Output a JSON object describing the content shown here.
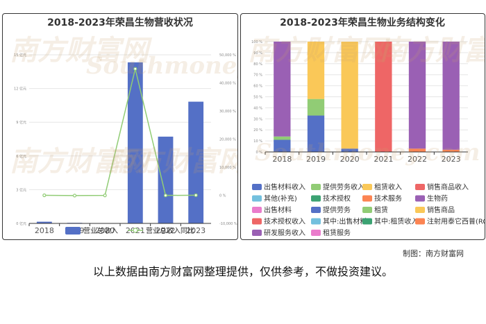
{
  "charts": {
    "left": {
      "title": "2018-2023年荣昌生物营收状况",
      "left_ticks": [
        "0 亿元",
        "3 亿元",
        "6 亿元",
        "9 亿元",
        "12 亿元",
        "15 亿元"
      ],
      "right_ticks": [
        "-10,000 %",
        "0 %",
        "10,000 %",
        "20,000 %",
        "30,000 %",
        "40,000 %",
        "50,000 %"
      ]
    },
    "right": {
      "title": "2018-2023年荣昌生物业务结构变化",
      "y_ticks": [
        "0 %",
        "10 %",
        "20 %",
        "30 %",
        "40 %",
        "50 %",
        "60 %",
        "70 %",
        "80 %",
        "90 %",
        "100 %"
      ]
    }
  },
  "chart_data": [
    {
      "type": "bar",
      "title": "2018-2023年荣昌生物营收状况",
      "categories": [
        "2018",
        "2019",
        "2020",
        "2021",
        "2022",
        "2023"
      ],
      "series": [
        {
          "name": "营业总收入",
          "type": "bar",
          "axis": "left",
          "unit": "亿元",
          "color": "#5470c6",
          "values": [
            0.15,
            0.05,
            0.03,
            14.33,
            7.72,
            10.83
          ]
        },
        {
          "name": "营业总收入同比",
          "type": "line",
          "axis": "right",
          "unit": "%",
          "color": "#91cc75",
          "values": [
            0,
            -100,
            -30,
            45000,
            -46,
            40
          ]
        }
      ],
      "ylim_left": [
        0,
        15
      ],
      "ylim_right": [
        -10000,
        50000
      ],
      "legend_position": "bottom"
    },
    {
      "type": "bar",
      "stacked": true,
      "title": "2018-2023年荣昌生物业务结构变化",
      "categories": [
        "2018",
        "2019",
        "2020",
        "2021",
        "2022",
        "2023"
      ],
      "ylim": [
        0,
        100
      ],
      "unit": "%",
      "legend_position": "bottom",
      "series": [
        {
          "name": "出售材料收入",
          "color": "#5470c6",
          "values": [
            0,
            0,
            0,
            0,
            0,
            0
          ]
        },
        {
          "name": "提供劳务收入",
          "color": "#91cc75",
          "values": [
            0,
            0,
            0,
            0,
            0,
            0
          ]
        },
        {
          "name": "租赁收入",
          "color": "#fac858",
          "values": [
            0,
            0,
            0,
            0,
            0,
            0
          ]
        },
        {
          "name": "销售商品收入",
          "color": "#ee6666",
          "values": [
            0,
            0,
            0,
            0,
            0,
            0
          ]
        },
        {
          "name": "其他(补充)",
          "color": "#73c0de",
          "values": [
            0,
            0,
            0,
            0,
            0,
            0
          ]
        },
        {
          "name": "技术授权",
          "color": "#3ba272",
          "values": [
            0,
            0,
            0,
            0,
            0,
            0
          ]
        },
        {
          "name": "技术服务",
          "color": "#fc8452",
          "values": [
            0,
            0,
            0,
            0,
            3,
            2
          ]
        },
        {
          "name": "生物药",
          "color": "#9a60b4",
          "values": [
            0,
            0,
            0,
            0,
            0,
            0
          ]
        },
        {
          "name": "出售材料",
          "color": "#ea7ccc",
          "values": [
            0,
            0,
            0,
            0,
            0,
            0
          ]
        },
        {
          "name": "提供劳务",
          "color": "#5470c6",
          "values": [
            11,
            33,
            3,
            0,
            0,
            0
          ]
        },
        {
          "name": "租赁",
          "color": "#91cc75",
          "values": [
            3,
            15,
            0,
            0,
            0,
            0
          ]
        },
        {
          "name": "销售商品",
          "color": "#fac858",
          "values": [
            0,
            52,
            97,
            0,
            0,
            0
          ]
        },
        {
          "name": "技术授权收入",
          "color": "#ee6666",
          "values": [
            0,
            0,
            0,
            100,
            0,
            0
          ]
        },
        {
          "name": "其中:出售材料",
          "color": "#73c0de",
          "values": [
            0,
            0,
            0,
            0,
            0,
            0
          ]
        },
        {
          "name": "其中:租赁收入",
          "color": "#3ba272",
          "values": [
            0,
            0,
            0,
            0,
            0,
            0
          ]
        },
        {
          "name": "注射用泰它西普(RC18)",
          "color": "#fc8452",
          "values": [
            0,
            0,
            0,
            0,
            0,
            0
          ]
        },
        {
          "name": "研发服务收入",
          "color": "#9a60b4",
          "values": [
            86,
            0,
            0,
            0,
            97,
            98
          ]
        },
        {
          "name": "租赁服务",
          "color": "#ea7ccc",
          "values": [
            0,
            0,
            0,
            0,
            0,
            0
          ]
        }
      ]
    }
  ],
  "watermark": {
    "cn": "南方财富网",
    "en": "Southmoney.com"
  },
  "credit": "制图：南方财富网",
  "footer_note": "以上数据由南方财富网整理提供，仅供参考，不做投资建议。"
}
